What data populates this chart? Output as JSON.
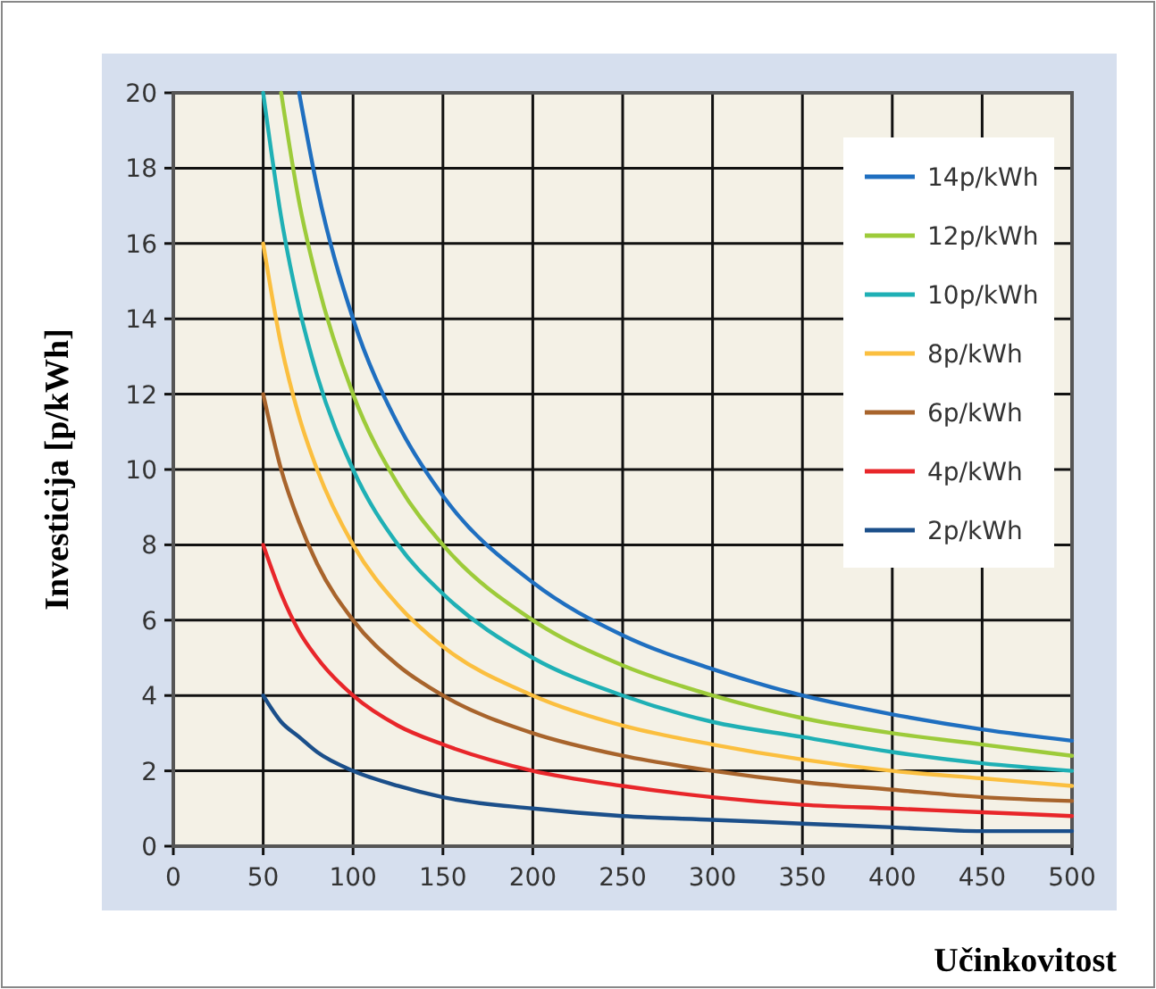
{
  "chart_data": {
    "type": "line",
    "xlabel": "Učinkovitost",
    "ylabel": "Investicija [p/kWh]",
    "xlim": [
      0,
      500
    ],
    "ylim": [
      0,
      20
    ],
    "xticks": [
      0,
      50,
      100,
      150,
      200,
      250,
      300,
      350,
      400,
      450,
      500
    ],
    "yticks": [
      0,
      2,
      4,
      6,
      8,
      10,
      12,
      14,
      16,
      18,
      20
    ],
    "grid": true,
    "legend": "top right",
    "marker": "none",
    "line_style": "solid",
    "series": [
      {
        "name": "14p/kWh",
        "color": "#1f6fc0",
        "x": [
          70,
          80,
          100,
          125,
          150,
          200,
          250,
          300,
          350,
          400,
          450,
          500
        ],
        "values": [
          20,
          17.5,
          14,
          11.2,
          9.3,
          7,
          5.6,
          4.7,
          4,
          3.5,
          3.1,
          2.8
        ]
      },
      {
        "name": "12p/kWh",
        "color": "#9dcb3a",
        "x": [
          60,
          70,
          80,
          100,
          125,
          150,
          200,
          250,
          300,
          350,
          400,
          450,
          500
        ],
        "values": [
          20,
          17.1,
          15,
          12,
          9.6,
          8,
          6,
          4.8,
          4,
          3.4,
          3,
          2.7,
          2.4
        ]
      },
      {
        "name": "10p/kWh",
        "color": "#1fb0b5",
        "x": [
          50,
          60,
          70,
          80,
          100,
          125,
          150,
          200,
          250,
          300,
          350,
          400,
          450,
          500
        ],
        "values": [
          20,
          16.7,
          14.3,
          12.5,
          10,
          8,
          6.7,
          5,
          4,
          3.3,
          2.9,
          2.5,
          2.2,
          2
        ]
      },
      {
        "name": "8p/kWh",
        "color": "#fbbf3f",
        "x": [
          50,
          60,
          70,
          80,
          100,
          125,
          150,
          200,
          250,
          300,
          350,
          400,
          450,
          500
        ],
        "values": [
          16,
          13.3,
          11.4,
          10,
          8,
          6.4,
          5.3,
          4,
          3.2,
          2.7,
          2.3,
          2,
          1.8,
          1.6
        ]
      },
      {
        "name": "6p/kWh",
        "color": "#a8642c",
        "x": [
          50,
          60,
          70,
          80,
          100,
          125,
          150,
          200,
          250,
          300,
          350,
          400,
          450,
          500
        ],
        "values": [
          12,
          10,
          8.6,
          7.5,
          6,
          4.8,
          4,
          3,
          2.4,
          2,
          1.7,
          1.5,
          1.3,
          1.2
        ]
      },
      {
        "name": "4p/kWh",
        "color": "#e8262a",
        "x": [
          50,
          60,
          70,
          80,
          100,
          125,
          150,
          200,
          250,
          300,
          350,
          400,
          450,
          500
        ],
        "values": [
          8,
          6.7,
          5.7,
          5,
          4,
          3.2,
          2.7,
          2,
          1.6,
          1.3,
          1.1,
          1,
          0.9,
          0.8
        ]
      },
      {
        "name": "2p/kWh",
        "color": "#1b4f8a",
        "x": [
          50,
          60,
          70,
          80,
          100,
          125,
          150,
          200,
          250,
          300,
          350,
          400,
          450,
          500
        ],
        "values": [
          4,
          3.3,
          2.9,
          2.5,
          2,
          1.6,
          1.3,
          1,
          0.8,
          0.7,
          0.6,
          0.5,
          0.4,
          0.4
        ]
      }
    ]
  }
}
